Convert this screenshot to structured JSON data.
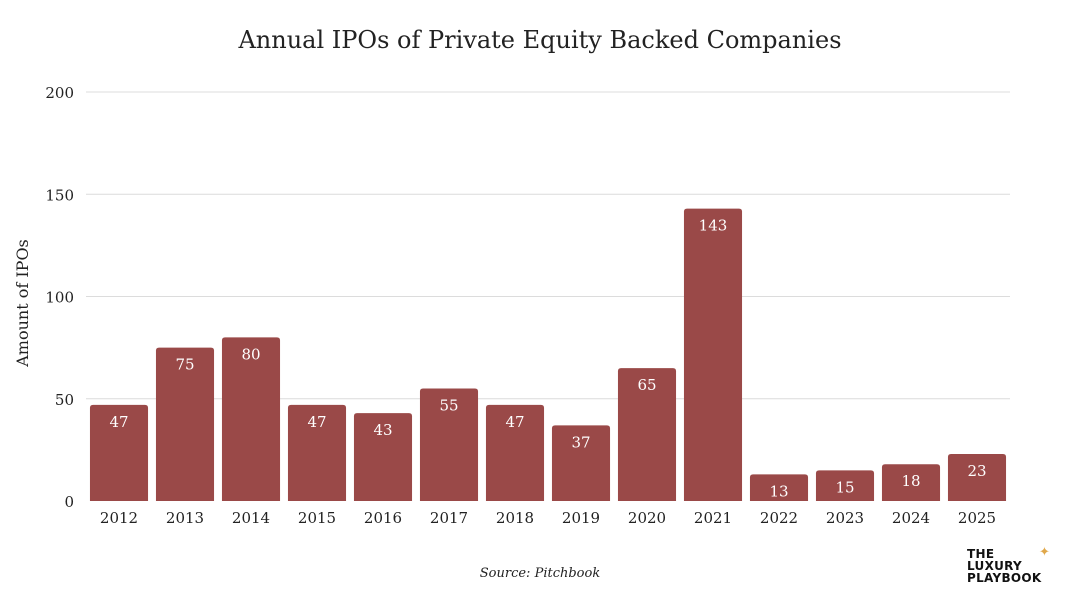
{
  "chart_data": {
    "type": "bar",
    "title": "Annual IPOs of Private Equity Backed Companies",
    "xlabel": "",
    "ylabel": "Amount of IPOs",
    "categories": [
      "2012",
      "2013",
      "2014",
      "2015",
      "2016",
      "2017",
      "2018",
      "2019",
      "2020",
      "2021",
      "2022",
      "2023",
      "2024",
      "2025"
    ],
    "values": [
      47,
      75,
      80,
      47,
      43,
      55,
      47,
      37,
      65,
      143,
      13,
      15,
      18,
      23
    ],
    "ylim": [
      0,
      200
    ],
    "yticks": [
      0,
      50,
      100,
      150,
      200
    ],
    "grid": true,
    "legend": "none",
    "data_labels": true,
    "colors": {
      "bar": "#9a4948",
      "label": "#ffffff",
      "grid": "#dcdcdc"
    }
  },
  "source_text": "Source: Pitchbook",
  "logo": {
    "line1": "THE",
    "line2": "LUXURY",
    "line3": "PLAYBOOK",
    "icon": "sparkle-icon"
  }
}
